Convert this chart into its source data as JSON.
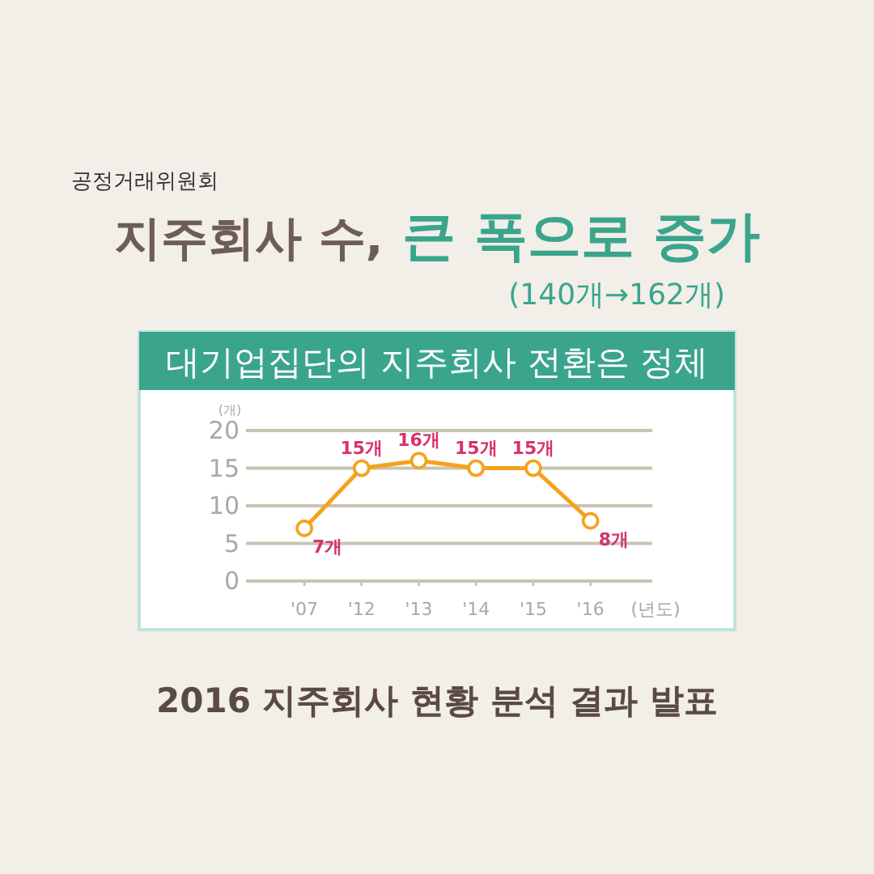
{
  "chart_data": {
    "type": "line",
    "title": "지주회사 수, 큰 폭으로 증가",
    "subtitle": "(140개→162개)",
    "annotations": [
      "공정거래위원회",
      "대기업집단의 지주회사 전환은 정체",
      "2016 지주회사 현황 분석 결과 발표"
    ],
    "ylabel": "(개)",
    "xlabel": "(년도)",
    "categories": [
      "'07",
      "'12",
      "'13",
      "'14",
      "'15",
      "'16"
    ],
    "series": [
      {
        "color": "#f5a21b",
        "values": [
          7,
          15,
          16,
          15,
          15,
          8
        ],
        "value_labels": [
          "7개",
          "15개",
          "16개",
          "15개",
          "15개",
          "8개"
        ]
      }
    ],
    "ylim": [
      0,
      20
    ],
    "yticks": [
      0,
      5,
      10,
      15,
      20
    ],
    "grid": "y",
    "marker": "circle",
    "line_style": "solid"
  }
}
